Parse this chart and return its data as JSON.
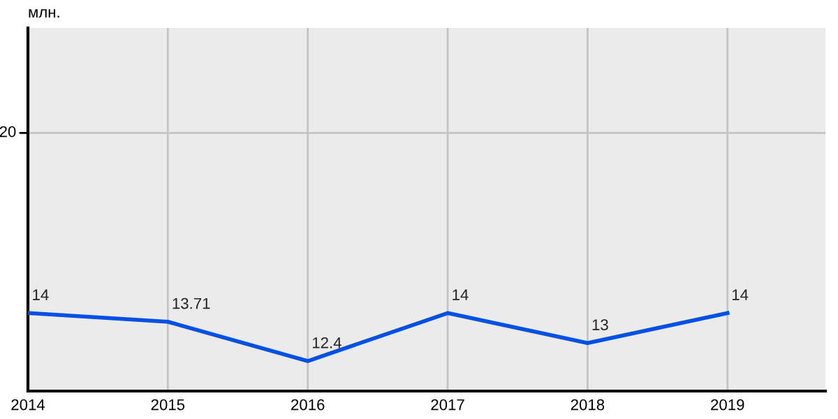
{
  "chart_data": {
    "type": "line",
    "ylabel": "млн.",
    "x": [
      2014,
      2015,
      2016,
      2017,
      2018,
      2019
    ],
    "series": [
      {
        "color": "#0050e6",
        "values": [
          14,
          13.71,
          12.4,
          14,
          13,
          14
        ]
      }
    ],
    "xlim": [
      2014,
      2019.7
    ],
    "xticks": [
      2014,
      2015,
      2016,
      2017,
      2018,
      2019
    ],
    "ylim": [
      11.4,
      23.5
    ],
    "ref_lines": [
      {
        "axis": "y",
        "value": 20,
        "label": "20",
        "color": "#c4c4c4"
      }
    ],
    "grid": "x",
    "data_labels": true,
    "marker": "none",
    "line_style": "solid"
  }
}
